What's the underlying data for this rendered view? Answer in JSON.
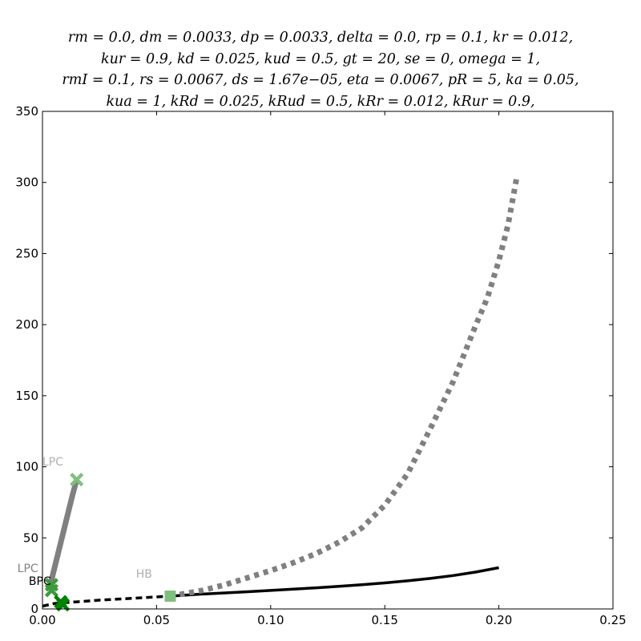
{
  "title_lines": [
    "rm = 0.0,   dm = 0.0033,   dp = 0.0033,   delta = 0.0,   rp = 0.1,   kr = 0.012,",
    "kur = 0.9,   kd = 0.025,   kud = 0.5,   gt = 20,   se = 0,   omega = 1,",
    "rmI = 0.1,   rs = 0.0067,   ds = 1.67e−05,   eta = 0.0067,   pR = 5,   ka = 0.05,",
    "kua = 1,   kRd = 0.025,   kRud = 0.5,   kRr = 0.012,   kRur = 0.9,"
  ],
  "chart_data": {
    "type": "line",
    "title": "",
    "xlabel": "",
    "ylabel": "",
    "xlim": [
      0,
      0.25
    ],
    "ylim": [
      0,
      350
    ],
    "xticks": [
      0.0,
      0.05,
      0.1,
      0.15,
      0.2,
      0.25
    ],
    "xtick_labels": [
      "0.00",
      "0.05",
      "0.10",
      "0.15",
      "0.20",
      "0.25"
    ],
    "yticks": [
      0,
      50,
      100,
      150,
      200,
      250,
      300,
      350
    ],
    "ytick_labels": [
      "0",
      "50",
      "100",
      "150",
      "200",
      "250",
      "300",
      "350"
    ],
    "grid": false,
    "series": [
      {
        "color": "#000000",
        "style": "solid",
        "width": 3.5,
        "points": [
          [
            0.056,
            9
          ],
          [
            0.07,
            10.5
          ],
          [
            0.08,
            11.3
          ],
          [
            0.09,
            12.1
          ],
          [
            0.1,
            13
          ],
          [
            0.11,
            13.9
          ],
          [
            0.12,
            14.9
          ],
          [
            0.13,
            15.9
          ],
          [
            0.14,
            17
          ],
          [
            0.15,
            18.3
          ],
          [
            0.16,
            19.8
          ],
          [
            0.17,
            21.5
          ],
          [
            0.18,
            23.5
          ],
          [
            0.19,
            26
          ],
          [
            0.2,
            29
          ]
        ]
      },
      {
        "color": "#000000",
        "style": "dashed",
        "width": 3.5,
        "points": [
          [
            0.0,
            2
          ],
          [
            0.005,
            3.8
          ],
          [
            0.015,
            5
          ],
          [
            0.025,
            6.2
          ],
          [
            0.035,
            7.1
          ],
          [
            0.045,
            8
          ],
          [
            0.056,
            9
          ]
        ]
      },
      {
        "color": "#808080",
        "style": "dashed",
        "width": 7,
        "points": [
          [
            0.056,
            9
          ],
          [
            0.07,
            13
          ],
          [
            0.08,
            17
          ],
          [
            0.09,
            22
          ],
          [
            0.1,
            27
          ],
          [
            0.11,
            32.5
          ],
          [
            0.12,
            39
          ],
          [
            0.13,
            47
          ],
          [
            0.14,
            57
          ],
          [
            0.15,
            73
          ],
          [
            0.16,
            95
          ],
          [
            0.17,
            127
          ],
          [
            0.18,
            160
          ],
          [
            0.19,
            200
          ],
          [
            0.195,
            219
          ],
          [
            0.2,
            245
          ],
          [
            0.204,
            270
          ],
          [
            0.208,
            305
          ]
        ]
      },
      {
        "color": "#808080",
        "style": "solid",
        "width": 7,
        "points": [
          [
            0.003,
            14
          ],
          [
            0.005,
            27
          ],
          [
            0.007,
            40
          ],
          [
            0.009,
            53
          ],
          [
            0.011,
            66
          ],
          [
            0.013,
            79
          ],
          [
            0.015,
            91
          ]
        ]
      },
      {
        "color": "#808080",
        "style": "solid",
        "width": 5,
        "points": [
          [
            0.002,
            14
          ],
          [
            0.005,
            17
          ]
        ]
      }
    ],
    "markers": [
      {
        "shape": "square",
        "color": "#7fbf7f",
        "x": 0.056,
        "y": 9
      },
      {
        "shape": "x",
        "color": "#7fbf7f",
        "x": 0.015,
        "y": 91
      },
      {
        "shape": "x",
        "color": "#3c9b3c",
        "x": 0.004,
        "y": 17
      },
      {
        "shape": "x",
        "color": "#3c9b3c",
        "x": 0.004,
        "y": 13
      },
      {
        "shape": "x",
        "color": "#008000",
        "x": 0.008,
        "y": 5
      },
      {
        "shape": "x",
        "color": "#008000",
        "x": 0.009,
        "y": 3
      }
    ],
    "annotations": [
      {
        "text": "LPC",
        "x": 0.0,
        "y": 101,
        "color": "#b0b0b0"
      },
      {
        "text": "LPC",
        "x": -0.011,
        "y": 26,
        "color": "#808080"
      },
      {
        "text": "HB",
        "x": 0.041,
        "y": 22,
        "color": "#b0b0b0"
      },
      {
        "text": "BPC",
        "x": -0.006,
        "y": 17,
        "color": "#000000"
      }
    ]
  }
}
